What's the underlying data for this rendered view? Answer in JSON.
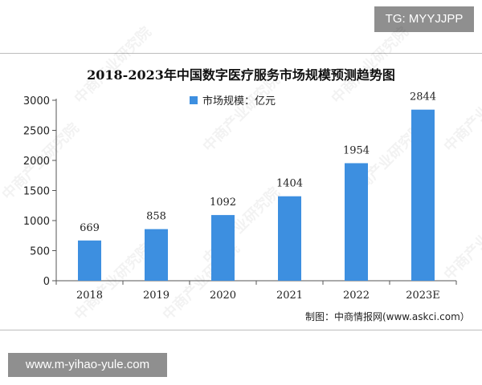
{
  "overlays": {
    "top_tag": "TG: MYYJJPP",
    "bottom_tag": "www.m-yihao-yule.com"
  },
  "watermark_text": "中商产业研究院",
  "source_note": "制图：中商情报网(www.askci.com）",
  "chart_data": {
    "type": "bar",
    "title": "2018-2023年中国数字医疗服务市场规模预测趋势图",
    "categories": [
      "2018",
      "2019",
      "2020",
      "2021",
      "2022",
      "2023E"
    ],
    "series": [
      {
        "name": "市场规模：亿元",
        "values": [
          669,
          858,
          1092,
          1404,
          1954,
          2844
        ],
        "color": "#3d8fe0"
      }
    ],
    "ylim": [
      0,
      3000
    ],
    "yticks": [
      0,
      500,
      1000,
      1500,
      2000,
      2500,
      3000
    ],
    "xlabel": "",
    "ylabel": "",
    "grid": false,
    "legend_position": "top-center",
    "data_labels": true
  }
}
